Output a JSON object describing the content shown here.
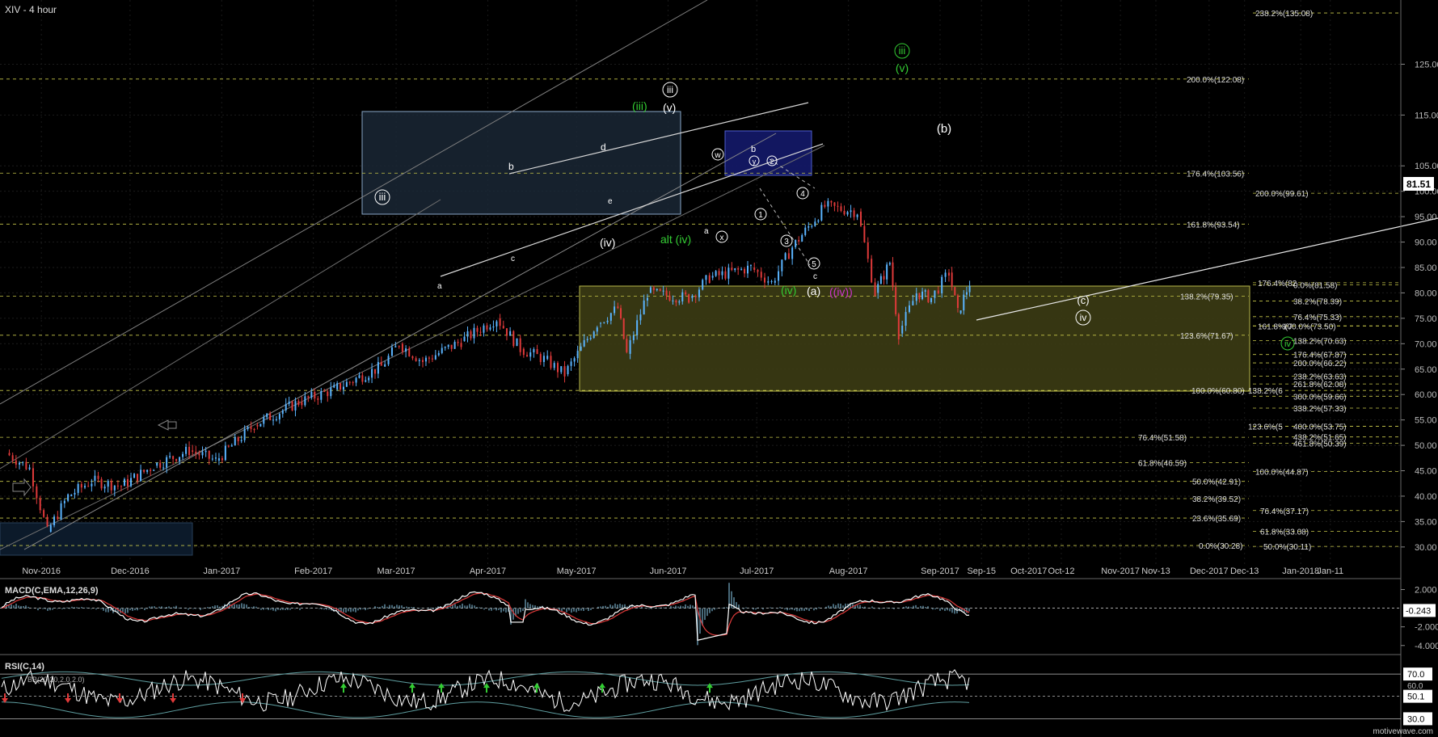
{
  "header": {
    "title": "XIV - 4 hour"
  },
  "watermark": "motivewave.com",
  "colors": {
    "background": "#000000",
    "up_bar": "#5ab4ff",
    "down_bar": "#e03a3a",
    "fib": "#c8c84a",
    "label_white": "#ffffff",
    "label_green": "#33cc33",
    "label_magenta": "#cc33cc",
    "macd_line": "#ffffff",
    "signal_line": "#e03a3a",
    "histogram": "#5f8ba0",
    "rsi_line": "#ffffff",
    "band": "#5f9ea0"
  },
  "chart_data": [
    {
      "type": "candlestick",
      "title": "XIV - 4 hour",
      "yaxis_side": "right",
      "ylim": [
        26,
        137
      ],
      "y_ticks": [
        "125.00",
        "115.00",
        "105.00",
        "100.00",
        "95.00",
        "90.00",
        "85.00",
        "80.00",
        "75.00",
        "70.00",
        "65.00",
        "60.00",
        "55.00",
        "50.00",
        "45.00",
        "40.00",
        "35.00",
        "30.00"
      ],
      "x_ticks": [
        "Nov-2016",
        "Dec-2016",
        "Jan-2017",
        "Feb-2017",
        "Mar-2017",
        "Apr-2017",
        "May-2017",
        "Jun-2017",
        "Jul-2017",
        "Aug-2017",
        "Sep-2017",
        "Sep-15",
        "Oct-2017",
        "Oct-12",
        "Nov-2017",
        "Nov-13",
        "Dec-2017",
        "Dec-13",
        "Jan-2018",
        "Jan-11"
      ],
      "last_price": "81.51",
      "price_path": [
        [
          "2016-10-20",
          48.5
        ],
        [
          "2016-10-28",
          45.5
        ],
        [
          "2016-11-03",
          33
        ],
        [
          "2016-11-10",
          40
        ],
        [
          "2016-11-18",
          43
        ],
        [
          "2016-11-28",
          42
        ],
        [
          "2016-12-09",
          46
        ],
        [
          "2016-12-21",
          49
        ],
        [
          "2016-12-30",
          47
        ],
        [
          "2017-01-12",
          54
        ],
        [
          "2017-01-27",
          58.5
        ],
        [
          "2017-02-08",
          61
        ],
        [
          "2017-02-24",
          65.5
        ],
        [
          "2017-03-02",
          70
        ],
        [
          "2017-03-10",
          66.5
        ],
        [
          "2017-03-23",
          70.5
        ],
        [
          "2017-04-04",
          75
        ],
        [
          "2017-04-12",
          69
        ],
        [
          "2017-04-20",
          67
        ],
        [
          "2017-04-27",
          64
        ],
        [
          "2017-05-08",
          74
        ],
        [
          "2017-05-15",
          77
        ],
        [
          "2017-05-18",
          68
        ],
        [
          "2017-05-25",
          80
        ],
        [
          "2017-06-08",
          79
        ],
        [
          "2017-06-15",
          83
        ],
        [
          "2017-06-29",
          85
        ],
        [
          "2017-07-06",
          82
        ],
        [
          "2017-07-13",
          89
        ],
        [
          "2017-07-24",
          97
        ],
        [
          "2017-08-04",
          96
        ],
        [
          "2017-08-10",
          80
        ],
        [
          "2017-08-15",
          86
        ],
        [
          "2017-08-18",
          72
        ],
        [
          "2017-08-24",
          80
        ],
        [
          "2017-08-29",
          79
        ],
        [
          "2017-09-04",
          84
        ],
        [
          "2017-09-07",
          76
        ],
        [
          "2017-09-11",
          82
        ]
      ],
      "left_fib_levels": [
        "200.0%(122.08)",
        "176.4%(103.56)",
        "161.8%(93.54)",
        "138.2%(79.35)",
        "123.6%(71.67)",
        "100.0%(60.80)",
        "76.4%(51.58)",
        "61.8%(46.59)",
        "50.0%(42.91)",
        "38.2%(39.52)",
        "23.6%(35.69)",
        "0.0%(30.28)"
      ],
      "right_fib_levels": [
        "238.2%(135.08)",
        "200.0%(99.61)",
        "176.4%(82",
        "0.0%(81.58)",
        "38.2%(78.39)",
        "76.4%(75.33)",
        "161.8%(7",
        "100.0%(73.50)",
        "138.2%(70.63)",
        "176.4%(67.87)",
        "200.0%(66.22)",
        "238.2%(63.63)",
        "261.8%(62.08)",
        "138.2%(6",
        "300.0%(59.66)",
        "338.2%(57.33)",
        "123.6%(5",
        "400.0%(53.75)",
        "438.2%(51.65)",
        "461.8%(50.39)",
        "100.0%(44.87)",
        "76.4%(37.17)",
        "61.8%(33.08)",
        "50.0%(30.11)"
      ],
      "wave_labels": [
        "iii",
        "(v)",
        "(iii)",
        "iii",
        "b",
        "d",
        "c",
        "e",
        "a",
        "(iv)",
        "alt (iv)",
        "a",
        "w",
        "x",
        "y",
        "b",
        "c",
        "1",
        "2",
        "3",
        "4",
        "5",
        "(iv)",
        "(a)",
        "((iv))",
        "(c)",
        "iv",
        "iii",
        "(v)",
        "(b)",
        "iv"
      ]
    },
    {
      "type": "line",
      "title": "MACD(C,EMA,12,26,9)",
      "y_ticks": [
        "2.000",
        "-2.000",
        "-4.000"
      ],
      "last_value": "-0.243"
    },
    {
      "type": "line",
      "title": "RSI(C,14)",
      "subtitle": "BB(20,20,2.0,2.0)",
      "y_ticks": [
        "70.0",
        "50.1",
        "30.0"
      ],
      "extra_tick": "60.0"
    }
  ]
}
